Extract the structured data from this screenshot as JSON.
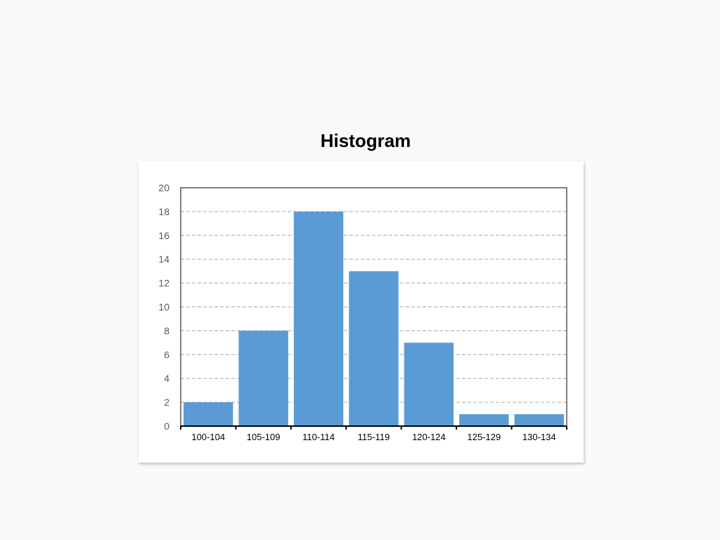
{
  "chart_data": {
    "type": "bar",
    "title": "Histogram",
    "xlabel": "",
    "ylabel": "",
    "categories": [
      "100-104",
      "105-109",
      "110-114",
      "115-119",
      "120-124",
      "125-129",
      "130-134"
    ],
    "values": [
      2,
      8,
      18,
      13,
      7,
      1,
      1
    ],
    "ylim": [
      0,
      20
    ],
    "yticks": [
      "0",
      "2",
      "4",
      "6",
      "8",
      "10",
      "12",
      "14",
      "16",
      "18",
      "20"
    ],
    "grid": true,
    "legend": "none",
    "colors": {
      "bar": "#5b9bd5",
      "grid": "#a6a6a6",
      "axis": "#000000",
      "ytick_text": "#595959",
      "xtick_text": "#000000"
    }
  }
}
